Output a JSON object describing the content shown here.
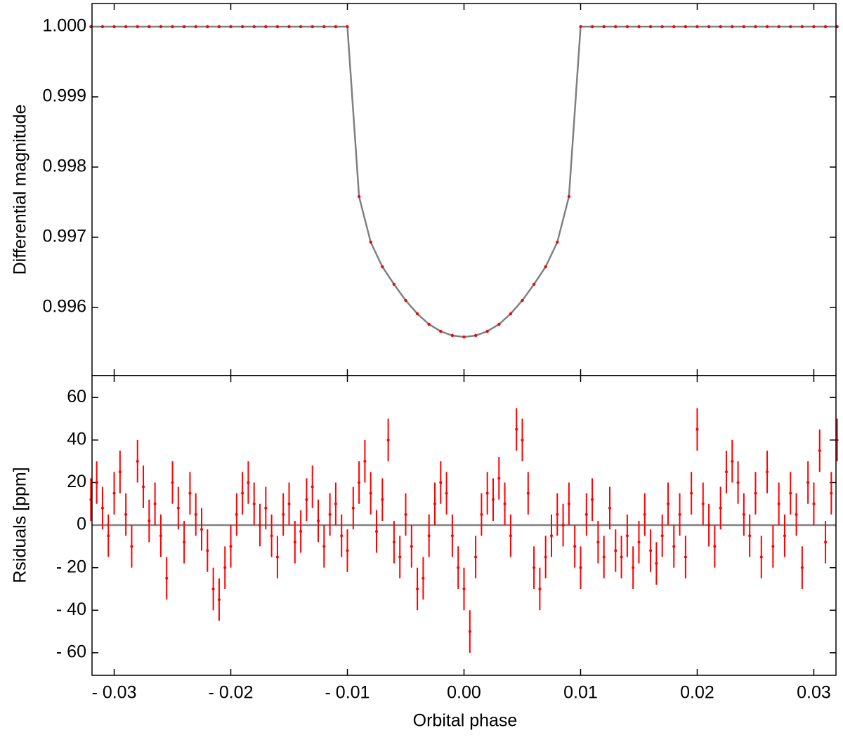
{
  "chart_data": [
    {
      "type": "line",
      "y_label": "Differential magnitude",
      "x": [
        -0.032,
        -0.031,
        -0.03,
        -0.029,
        -0.028,
        -0.027,
        -0.026,
        -0.025,
        -0.024,
        -0.023,
        -0.022,
        -0.021,
        -0.02,
        -0.019,
        -0.018,
        -0.017,
        -0.016,
        -0.015,
        -0.014,
        -0.013,
        -0.012,
        -0.011,
        -0.01,
        -0.009,
        -0.008,
        -0.007,
        -0.006,
        -0.005,
        -0.004,
        -0.003,
        -0.002,
        -0.001,
        0,
        0.001,
        0.002,
        0.003,
        0.004,
        0.005,
        0.006,
        0.007,
        0.008,
        0.009,
        0.01,
        0.011,
        0.012,
        0.013,
        0.014,
        0.015,
        0.016,
        0.017,
        0.018,
        0.019,
        0.02,
        0.021,
        0.022,
        0.023,
        0.024,
        0.025,
        0.026,
        0.027,
        0.028,
        0.029,
        0.03,
        0.031,
        0.032
      ],
      "series": [
        {
          "line_color": "#808080",
          "marker_color": "#ff0000",
          "values": [
            1,
            1,
            1,
            1,
            1,
            1,
            1,
            1,
            1,
            1,
            1,
            1,
            1,
            1,
            1,
            1,
            1,
            1,
            1,
            1,
            1,
            1,
            1,
            0.99758,
            0.99693,
            0.99658,
            0.99633,
            0.9961,
            0.99591,
            0.99576,
            0.99566,
            0.9956,
            0.99558,
            0.9956,
            0.99566,
            0.99576,
            0.99591,
            0.9961,
            0.99633,
            0.99658,
            0.99693,
            0.99758,
            1,
            1,
            1,
            1,
            1,
            1,
            1,
            1,
            1,
            1,
            1,
            1,
            1,
            1,
            1,
            1,
            1,
            1,
            1,
            1,
            1,
            1,
            1
          ]
        }
      ],
      "xlim": [
        -0.0319,
        0.0319
      ],
      "ylim": [
        0.99503,
        1.00033
      ],
      "yticks": [
        {
          "value": 1,
          "label": "1.000"
        },
        0.999,
        0.998,
        0.997,
        0.996
      ]
    },
    {
      "type": "scatter",
      "x_label": "Orbital phase",
      "y_label": "Rsiduals [ppm]",
      "x": [
        -0.032,
        -0.0315,
        -0.031,
        -0.0305,
        -0.03,
        -0.0295,
        -0.029,
        -0.0285,
        -0.028,
        -0.0275,
        -0.027,
        -0.0265,
        -0.026,
        -0.0255,
        -0.025,
        -0.0245,
        -0.024,
        -0.0235,
        -0.023,
        -0.0225,
        -0.022,
        -0.0215,
        -0.021,
        -0.0205,
        -0.02,
        -0.0195,
        -0.019,
        -0.0185,
        -0.018,
        -0.0175,
        -0.017,
        -0.0165,
        -0.016,
        -0.0155,
        -0.015,
        -0.0145,
        -0.014,
        -0.0135,
        -0.013,
        -0.0125,
        -0.012,
        -0.0115,
        -0.011,
        -0.0105,
        -0.01,
        -0.0095,
        -0.009,
        -0.0085,
        -0.008,
        -0.0075,
        -0.007,
        -0.0065,
        -0.006,
        -0.0055,
        -0.005,
        -0.0045,
        -0.004,
        -0.0035,
        -0.003,
        -0.0025,
        -0.002,
        -0.0015,
        -0.001,
        -0.0005,
        0,
        0.0005,
        0.001,
        0.0015,
        0.002,
        0.0025,
        0.003,
        0.0035,
        0.004,
        0.0045,
        0.005,
        0.0055,
        0.006,
        0.0065,
        0.007,
        0.0075,
        0.008,
        0.0085,
        0.009,
        0.0095,
        0.01,
        0.0105,
        0.011,
        0.0115,
        0.012,
        0.0125,
        0.013,
        0.0135,
        0.014,
        0.0145,
        0.015,
        0.0155,
        0.016,
        0.0165,
        0.017,
        0.0175,
        0.018,
        0.0185,
        0.019,
        0.0195,
        0.02,
        0.0205,
        0.021,
        0.0215,
        0.022,
        0.0225,
        0.023,
        0.0235,
        0.024,
        0.0245,
        0.025,
        0.0255,
        0.026,
        0.0265,
        0.027,
        0.0275,
        0.028,
        0.0285,
        0.029,
        0.0295,
        0.03,
        0.0305,
        0.031,
        0.0315,
        0.032
      ],
      "series": [
        {
          "color": "#ff0000",
          "error": 10,
          "values": [
            12,
            20,
            8,
            -5,
            15,
            25,
            5,
            -10,
            30,
            18,
            2,
            10,
            -5,
            -25,
            20,
            8,
            -8,
            15,
            5,
            -2,
            -12,
            -30,
            -35,
            -20,
            -10,
            5,
            15,
            20,
            10,
            0,
            8,
            -5,
            -15,
            5,
            10,
            -8,
            -3,
            12,
            18,
            2,
            -10,
            5,
            10,
            -5,
            -12,
            8,
            20,
            30,
            15,
            -3,
            12,
            40,
            -8,
            -15,
            5,
            -10,
            -30,
            -25,
            -5,
            10,
            20,
            15,
            -5,
            -20,
            -30,
            -50,
            -15,
            5,
            15,
            12,
            22,
            10,
            -5,
            45,
            40,
            15,
            -20,
            -30,
            -15,
            -5,
            5,
            0,
            10,
            -10,
            -20,
            5,
            12,
            -8,
            -15,
            8,
            -12,
            -15,
            -5,
            -20,
            -8,
            5,
            -12,
            -18,
            -5,
            10,
            -10,
            5,
            -15,
            15,
            45,
            10,
            0,
            -10,
            8,
            25,
            30,
            20,
            5,
            -5,
            15,
            -15,
            25,
            -10,
            10,
            -5,
            15,
            5,
            -20,
            20,
            10,
            35,
            -8,
            15,
            40
          ]
        }
      ],
      "reference_line": 0,
      "reference_color": "#808080",
      "xlim": [
        -0.0319,
        0.0319
      ],
      "ylim": [
        -70.6,
        70.3
      ],
      "xticks": [
        {
          "value": -0.03,
          "label": "- 0.03"
        },
        {
          "value": -0.02,
          "label": "- 0.02"
        },
        {
          "value": -0.01,
          "label": "- 0.01"
        },
        {
          "value": 0,
          "label": "0.00"
        },
        0.01,
        0.02,
        0.03
      ],
      "yticks": [
        60,
        40,
        20,
        0,
        {
          "value": -20,
          "label": "- 20"
        },
        {
          "value": -40,
          "label": "- 40"
        },
        {
          "value": -60,
          "label": "- 60"
        }
      ]
    }
  ]
}
